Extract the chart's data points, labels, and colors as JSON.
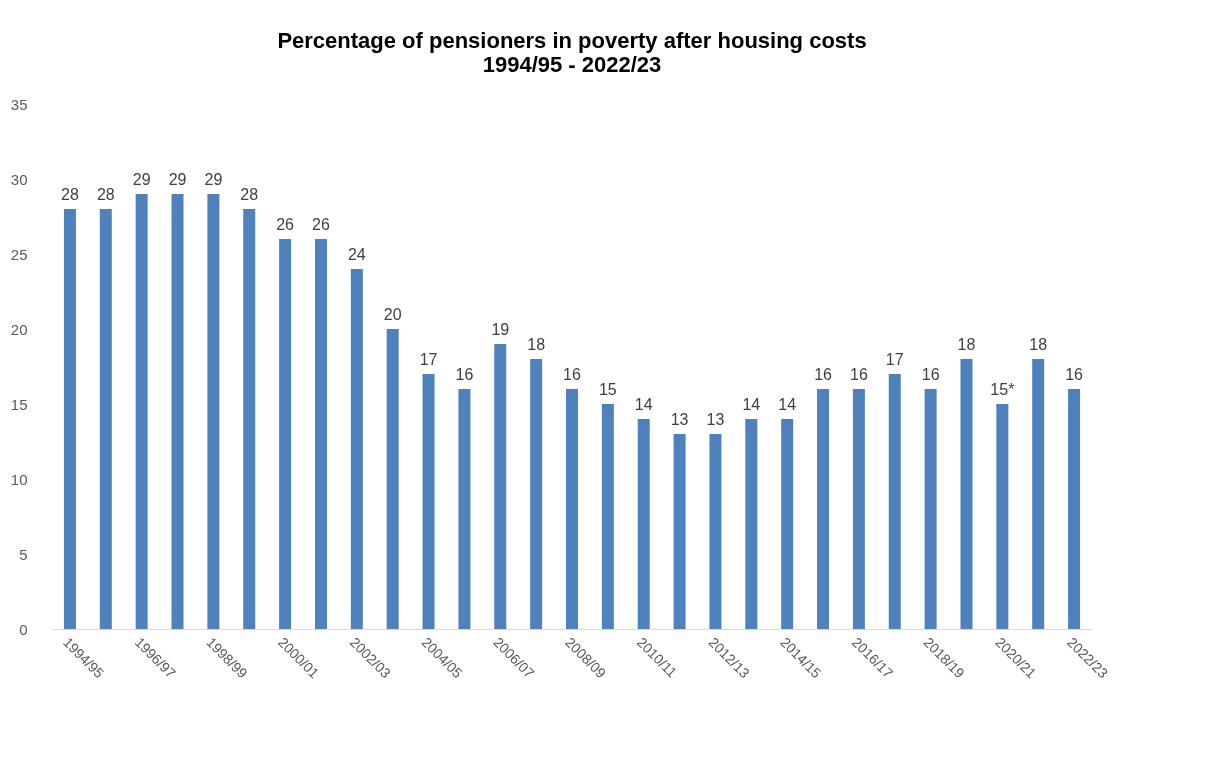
{
  "chart_data": {
    "type": "bar",
    "title": [
      "Percentage of pensioners in poverty after housing costs",
      "1994/95 - 2022/23"
    ],
    "categories": [
      "1994/95",
      null,
      "1996/97",
      null,
      "1998/99",
      null,
      "2000/01",
      null,
      "2002/03",
      null,
      "2004/05",
      null,
      "2006/07",
      null,
      "2008/09",
      null,
      "2010/11",
      null,
      "2012/13",
      null,
      "2014/15",
      null,
      "2016/17",
      null,
      "2018/19",
      null,
      "2020/21",
      null,
      "2022/23"
    ],
    "values": [
      28,
      28,
      29,
      29,
      29,
      28,
      26,
      26,
      24,
      20,
      17,
      16,
      19,
      18,
      16,
      15,
      14,
      13,
      13,
      14,
      14,
      16,
      16,
      17,
      16,
      18,
      15,
      18,
      16
    ],
    "value_labels": [
      "28",
      "28",
      "29",
      "29",
      "29",
      "28",
      "26",
      "26",
      "24",
      "20",
      "17",
      "16",
      "19",
      "18",
      "16",
      "15",
      "14",
      "13",
      "13",
      "14",
      "14",
      "16",
      "16",
      "17",
      "16",
      "18",
      "15*",
      "18",
      "16"
    ],
    "color": "#4f81bd",
    "ylim": [
      0,
      35
    ],
    "yticks": [
      0,
      5,
      10,
      15,
      20,
      25,
      30,
      35
    ],
    "grid": false
  }
}
